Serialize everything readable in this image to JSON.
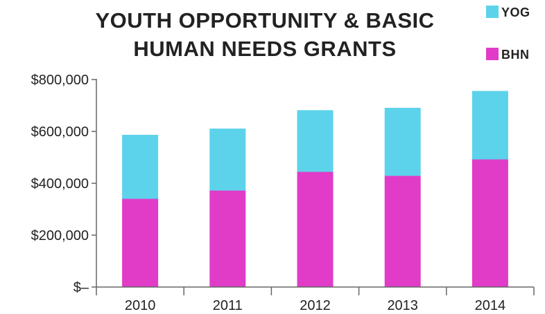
{
  "chart_data": {
    "type": "bar",
    "stacked": true,
    "title": "YOUTH OPPORTUNITY & BASIC HUMAN NEEDS GRANTS",
    "title_lines": [
      "YOUTH OPPORTUNITY & BASIC",
      "HUMAN NEEDS GRANTS"
    ],
    "categories": [
      "2010",
      "2011",
      "2012",
      "2013",
      "2014"
    ],
    "series": [
      {
        "name": "BHN",
        "color": "#e03cc8",
        "values": [
          340000,
          372000,
          444000,
          429000,
          492000
        ]
      },
      {
        "name": "YOG",
        "color": "#5cd3ea",
        "values": [
          247000,
          239000,
          238000,
          262000,
          264000
        ]
      }
    ],
    "ylim": [
      0,
      800000
    ],
    "y_ticks": [
      0,
      200000,
      400000,
      600000,
      800000
    ],
    "y_tick_labels": [
      "$–",
      "$200,000",
      "$400,000",
      "$600,000",
      "$800,000"
    ],
    "xlabel": "",
    "ylabel": "",
    "grid": false,
    "legend": {
      "placement": "top-right",
      "entries": [
        {
          "label": "YOG",
          "color": "#5cd3ea"
        },
        {
          "label": "BHN",
          "color": "#e03cc8"
        }
      ]
    },
    "axis_color": "#666666"
  }
}
